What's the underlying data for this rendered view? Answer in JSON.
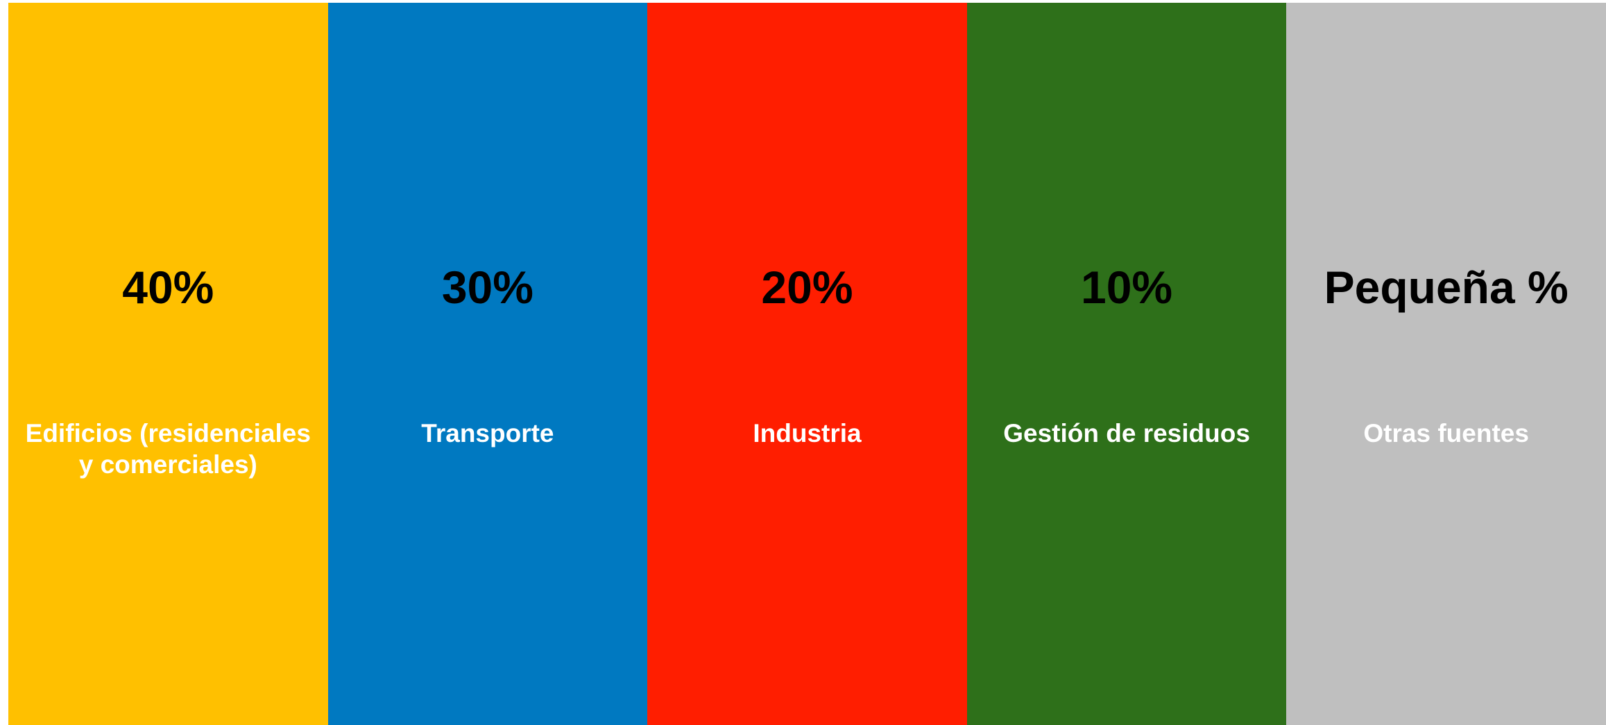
{
  "panels": [
    {
      "value": "40%",
      "label": "Edificios (residenciales y comerciales)",
      "color": "#FFC000"
    },
    {
      "value": "30%",
      "label": "Transporte",
      "color": "#0079C1"
    },
    {
      "value": "20%",
      "label": "Industria",
      "color": "#FF1E00"
    },
    {
      "value": "10%",
      "label": "Gestión de residuos",
      "color": "#2E701A"
    },
    {
      "value": "Pequeña %",
      "label": "Otras fuentes",
      "color": "#BFBFBF"
    }
  ]
}
